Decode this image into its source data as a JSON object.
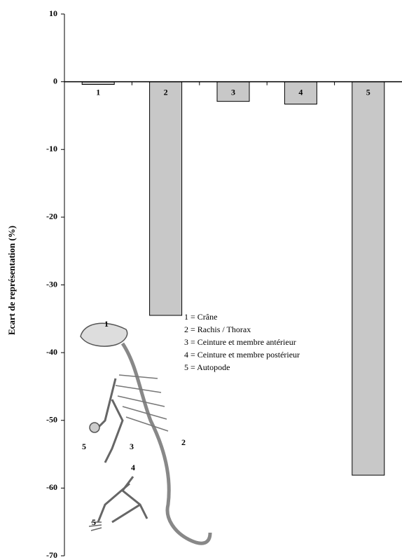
{
  "chart_data": {
    "type": "bar",
    "y_label": "Ecart de représentation (%)",
    "categories": [
      "1",
      "2",
      "3",
      "4",
      "5"
    ],
    "values": [
      -0.4,
      -34.5,
      -2.9,
      -3.3,
      -58.1
    ],
    "color": "#c8c8c8",
    "ylim": [
      -70,
      10
    ],
    "yticks": [
      10,
      0,
      -10,
      -20,
      -30,
      -40,
      -50,
      -60,
      -70
    ],
    "legend_items": [
      "1 = Crâne",
      "2 = Rachis / Thorax",
      "3 = Ceinture et membre antérieur",
      "4 = Ceinture et membre postérieur",
      "5 = Autopode"
    ],
    "figure_labels": [
      "1",
      "2",
      "3",
      "4",
      "5",
      "5"
    ]
  }
}
